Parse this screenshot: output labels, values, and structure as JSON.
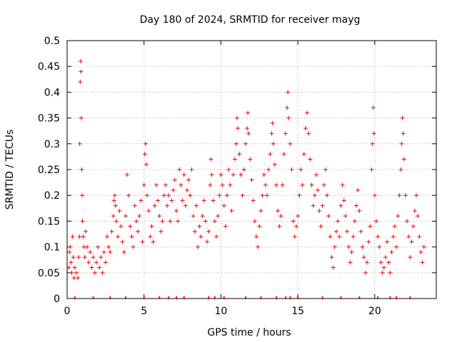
{
  "chart_data": {
    "type": "scatter",
    "title": "Day 180 of 2024, SRMTID for receiver mayg",
    "xlabel": "GPS time / hours",
    "ylabel": "SRMTID / TECUs",
    "xlim": [
      0,
      24
    ],
    "ylim": [
      0,
      0.5
    ],
    "xticks": [
      0,
      5,
      10,
      15,
      20
    ],
    "xtick_labels": [
      "0",
      "5",
      "10",
      "15",
      "20"
    ],
    "yticks": [
      0,
      0.05,
      0.1,
      0.15,
      0.2,
      0.25,
      0.3,
      0.35,
      0.4,
      0.45,
      0.5
    ],
    "ytick_labels": [
      "0",
      "0.05",
      "0.1",
      "0.15",
      "0.2",
      "0.25",
      "0.3",
      "0.35",
      "0.4",
      "0.45",
      "0.5"
    ],
    "grid": true,
    "marker": "+",
    "color": "#ee0000",
    "series": [
      {
        "name": "SRMTID",
        "points": [
          [
            0.1,
            0.06
          ],
          [
            0.15,
            0.09
          ],
          [
            0.2,
            0.1
          ],
          [
            0.25,
            0.07
          ],
          [
            0.3,
            0.05
          ],
          [
            0.35,
            0.12
          ],
          [
            0.4,
            0.08
          ],
          [
            0.45,
            0.04
          ],
          [
            0.5,
            0.06
          ],
          [
            0.6,
            0.05
          ],
          [
            0.7,
            0.04
          ],
          [
            0.75,
            0.08
          ],
          [
            0.8,
            0.12
          ],
          [
            0.82,
            0.3
          ],
          [
            0.85,
            0.42
          ],
          [
            0.88,
            0.46
          ],
          [
            0.9,
            0.44
          ],
          [
            0.92,
            0.35
          ],
          [
            0.95,
            0.25
          ],
          [
            0.98,
            0.2
          ],
          [
            1.0,
            0.15
          ],
          [
            1.05,
            0.12
          ],
          [
            1.1,
            0.1
          ],
          [
            1.15,
            0.08
          ],
          [
            1.2,
            0.13
          ],
          [
            1.3,
            0.1
          ],
          [
            1.4,
            0.07
          ],
          [
            1.5,
            0.09
          ],
          [
            1.6,
            0.06
          ],
          [
            1.7,
            0.08
          ],
          [
            1.8,
            0.05
          ],
          [
            1.9,
            0.07
          ],
          [
            2.0,
            0.1
          ],
          [
            2.1,
            0.06
          ],
          [
            2.2,
            0.08
          ],
          [
            2.3,
            0.05
          ],
          [
            2.4,
            0.09
          ],
          [
            2.5,
            0.07
          ],
          [
            2.6,
            0.12
          ],
          [
            2.7,
            0.1
          ],
          [
            2.8,
            0.09
          ],
          [
            2.9,
            0.13
          ],
          [
            3.0,
            0.16
          ],
          [
            3.05,
            0.19
          ],
          [
            3.1,
            0.2
          ],
          [
            3.15,
            0.18
          ],
          [
            3.2,
            0.15
          ],
          [
            3.3,
            0.12
          ],
          [
            3.4,
            0.17
          ],
          [
            3.5,
            0.14
          ],
          [
            3.6,
            0.11
          ],
          [
            3.7,
            0.09
          ],
          [
            3.8,
            0.16
          ],
          [
            3.9,
            0.24
          ],
          [
            4.0,
            0.2
          ],
          [
            4.1,
            0.14
          ],
          [
            4.2,
            0.12
          ],
          [
            4.3,
            0.1
          ],
          [
            4.4,
            0.18
          ],
          [
            4.5,
            0.15
          ],
          [
            4.6,
            0.13
          ],
          [
            4.7,
            0.16
          ],
          [
            4.8,
            0.19
          ],
          [
            4.9,
            0.11
          ],
          [
            5.0,
            0.22
          ],
          [
            5.05,
            0.28
          ],
          [
            5.1,
            0.3
          ],
          [
            5.15,
            0.26
          ],
          [
            5.2,
            0.2
          ],
          [
            5.3,
            0.17
          ],
          [
            5.4,
            0.12
          ],
          [
            5.5,
            0.14
          ],
          [
            5.6,
            0.11
          ],
          [
            5.7,
            0.18
          ],
          [
            5.8,
            0.22
          ],
          [
            5.9,
            0.19
          ],
          [
            6.0,
            0.16
          ],
          [
            6.1,
            0.13
          ],
          [
            6.2,
            0.15
          ],
          [
            6.3,
            0.2
          ],
          [
            6.4,
            0.22
          ],
          [
            6.5,
            0.18
          ],
          [
            6.6,
            0.2
          ],
          [
            6.7,
            0.15
          ],
          [
            6.8,
            0.19
          ],
          [
            6.9,
            0.21
          ],
          [
            7.0,
            0.23
          ],
          [
            7.1,
            0.17
          ],
          [
            7.2,
            0.15
          ],
          [
            7.3,
            0.25
          ],
          [
            7.4,
            0.22
          ],
          [
            7.5,
            0.19
          ],
          [
            7.6,
            0.24
          ],
          [
            7.7,
            0.18
          ],
          [
            7.8,
            0.21
          ],
          [
            7.9,
            0.23
          ],
          [
            8.0,
            0.2
          ],
          [
            8.1,
            0.25
          ],
          [
            8.2,
            0.16
          ],
          [
            8.3,
            0.13
          ],
          [
            8.4,
            0.18
          ],
          [
            8.5,
            0.1
          ],
          [
            8.6,
            0.14
          ],
          [
            8.7,
            0.12
          ],
          [
            8.8,
            0.16
          ],
          [
            8.9,
            0.19
          ],
          [
            9.0,
            0.15
          ],
          [
            9.1,
            0.11
          ],
          [
            9.2,
            0.13
          ],
          [
            9.3,
            0.22
          ],
          [
            9.35,
            0.27
          ],
          [
            9.4,
            0.24
          ],
          [
            9.5,
            0.19
          ],
          [
            9.6,
            0.15
          ],
          [
            9.7,
            0.12
          ],
          [
            9.8,
            0.16
          ],
          [
            9.9,
            0.2
          ],
          [
            10.0,
            0.24
          ],
          [
            10.1,
            0.22
          ],
          [
            10.2,
            0.18
          ],
          [
            10.3,
            0.14
          ],
          [
            10.4,
            0.2
          ],
          [
            10.5,
            0.25
          ],
          [
            10.6,
            0.22
          ],
          [
            10.7,
            0.17
          ],
          [
            10.8,
            0.24
          ],
          [
            10.9,
            0.27
          ],
          [
            11.0,
            0.3
          ],
          [
            11.05,
            0.35
          ],
          [
            11.1,
            0.33
          ],
          [
            11.2,
            0.28
          ],
          [
            11.3,
            0.24
          ],
          [
            11.4,
            0.2
          ],
          [
            11.5,
            0.25
          ],
          [
            11.6,
            0.3
          ],
          [
            11.7,
            0.33
          ],
          [
            11.75,
            0.36
          ],
          [
            11.8,
            0.32
          ],
          [
            11.9,
            0.27
          ],
          [
            12.0,
            0.23
          ],
          [
            12.1,
            0.19
          ],
          [
            12.2,
            0.15
          ],
          [
            12.3,
            0.12
          ],
          [
            12.4,
            0.1
          ],
          [
            12.5,
            0.14
          ],
          [
            12.6,
            0.17
          ],
          [
            12.7,
            0.2
          ],
          [
            12.8,
            0.24
          ],
          [
            12.9,
            0.22
          ],
          [
            13.0,
            0.2
          ],
          [
            13.1,
            0.25
          ],
          [
            13.2,
            0.28
          ],
          [
            13.3,
            0.32
          ],
          [
            13.35,
            0.34
          ],
          [
            13.4,
            0.3
          ],
          [
            13.5,
            0.26
          ],
          [
            13.6,
            0.22
          ],
          [
            13.7,
            0.17
          ],
          [
            13.8,
            0.14
          ],
          [
            13.9,
            0.16
          ],
          [
            14.0,
            0.22
          ],
          [
            14.1,
            0.28
          ],
          [
            14.2,
            0.32
          ],
          [
            14.3,
            0.37
          ],
          [
            14.35,
            0.4
          ],
          [
            14.4,
            0.35
          ],
          [
            14.5,
            0.3
          ],
          [
            14.6,
            0.25
          ],
          [
            14.7,
            0.15
          ],
          [
            14.8,
            0.12
          ],
          [
            14.9,
            0.14
          ],
          [
            15.0,
            0.16
          ],
          [
            15.1,
            0.2
          ],
          [
            15.2,
            0.25
          ],
          [
            15.3,
            0.22
          ],
          [
            15.4,
            0.28
          ],
          [
            15.5,
            0.33
          ],
          [
            15.6,
            0.36
          ],
          [
            15.7,
            0.32
          ],
          [
            15.8,
            0.27
          ],
          [
            15.9,
            0.22
          ],
          [
            16.0,
            0.18
          ],
          [
            16.1,
            0.2
          ],
          [
            16.2,
            0.24
          ],
          [
            16.3,
            0.21
          ],
          [
            16.4,
            0.17
          ],
          [
            16.5,
            0.14
          ],
          [
            16.6,
            0.18
          ],
          [
            16.7,
            0.22
          ],
          [
            16.8,
            0.25
          ],
          [
            16.9,
            0.2
          ],
          [
            17.0,
            0.16
          ],
          [
            17.1,
            0.12
          ],
          [
            17.2,
            0.08
          ],
          [
            17.3,
            0.06
          ],
          [
            17.4,
            0.1
          ],
          [
            17.5,
            0.13
          ],
          [
            17.6,
            0.15
          ],
          [
            17.7,
            0.12
          ],
          [
            17.8,
            0.18
          ],
          [
            17.9,
            0.22
          ],
          [
            18.0,
            0.19
          ],
          [
            18.1,
            0.16
          ],
          [
            18.2,
            0.13
          ],
          [
            18.3,
            0.1
          ],
          [
            18.4,
            0.07
          ],
          [
            18.5,
            0.09
          ],
          [
            18.6,
            0.12
          ],
          [
            18.7,
            0.15
          ],
          [
            18.8,
            0.18
          ],
          [
            18.9,
            0.21
          ],
          [
            19.0,
            0.17
          ],
          [
            19.1,
            0.13
          ],
          [
            19.2,
            0.1
          ],
          [
            19.3,
            0.08
          ],
          [
            19.4,
            0.05
          ],
          [
            19.5,
            0.07
          ],
          [
            19.6,
            0.11
          ],
          [
            19.7,
            0.14
          ],
          [
            19.8,
            0.25
          ],
          [
            19.85,
            0.3
          ],
          [
            19.9,
            0.37
          ],
          [
            19.95,
            0.32
          ],
          [
            20.0,
            0.2
          ],
          [
            20.1,
            0.15
          ],
          [
            20.2,
            0.12
          ],
          [
            20.3,
            0.1
          ],
          [
            20.4,
            0.07
          ],
          [
            20.5,
            0.05
          ],
          [
            20.6,
            0.06
          ],
          [
            20.7,
            0.08
          ],
          [
            20.8,
            0.11
          ],
          [
            20.9,
            0.07
          ],
          [
            21.0,
            0.05
          ],
          [
            21.1,
            0.09
          ],
          [
            21.2,
            0.12
          ],
          [
            21.3,
            0.14
          ],
          [
            21.4,
            0.1
          ],
          [
            21.5,
            0.16
          ],
          [
            21.6,
            0.2
          ],
          [
            21.7,
            0.25
          ],
          [
            21.75,
            0.3
          ],
          [
            21.8,
            0.35
          ],
          [
            21.85,
            0.32
          ],
          [
            21.9,
            0.27
          ],
          [
            22.0,
            0.2
          ],
          [
            22.1,
            0.15
          ],
          [
            22.2,
            0.12
          ],
          [
            22.3,
            0.08
          ],
          [
            22.4,
            0.11
          ],
          [
            22.5,
            0.14
          ],
          [
            22.6,
            0.17
          ],
          [
            22.7,
            0.2
          ],
          [
            22.8,
            0.16
          ],
          [
            22.9,
            0.12
          ],
          [
            23.0,
            0.09
          ],
          [
            23.1,
            0.07
          ],
          [
            23.2,
            0.1
          ]
        ]
      },
      {
        "name": "zero-level markers",
        "x": [
          0.5,
          1.7,
          2.8,
          3.8,
          5.0,
          6.0,
          6.6,
          7.1,
          7.6,
          9.2,
          9.6,
          10.2,
          11.6,
          12.6,
          13.6,
          14.2,
          14.5,
          15.0,
          16.6,
          17.8,
          19.0,
          20.2,
          21.0,
          21.4,
          22.3
        ],
        "y": 0
      }
    ]
  }
}
